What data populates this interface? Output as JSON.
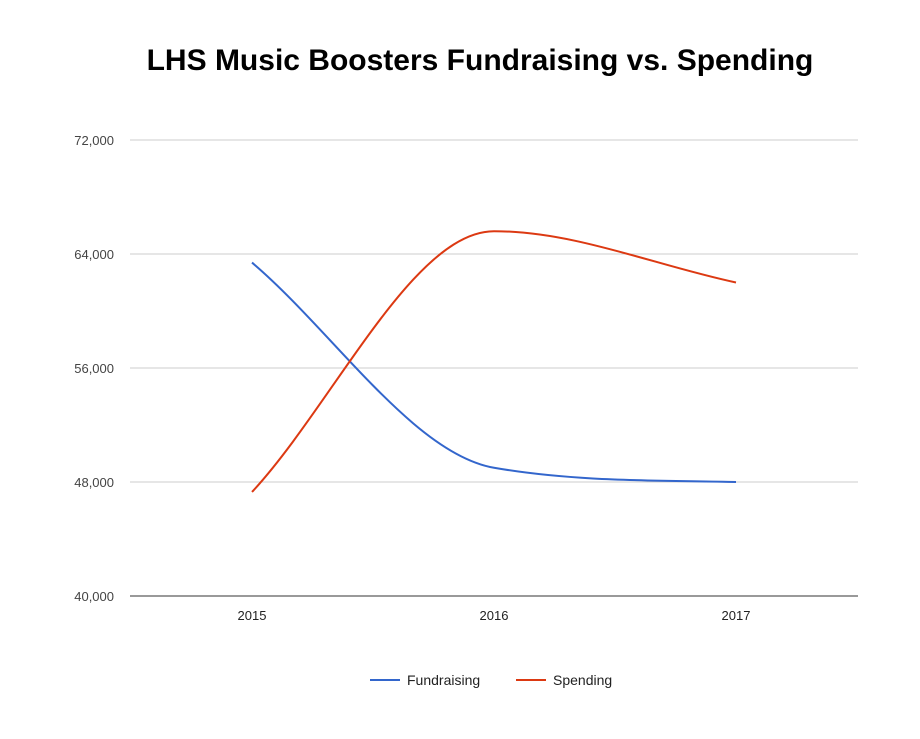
{
  "chart_data": {
    "type": "line",
    "title": "LHS Music Boosters Fundraising vs. Spending",
    "categories": [
      "2015",
      "2016",
      "2017"
    ],
    "series": [
      {
        "name": "Fundraising",
        "color": "#3366cc",
        "values": [
          63400,
          49000,
          48000
        ]
      },
      {
        "name": "Spending",
        "color": "#dc3912",
        "values": [
          47300,
          65600,
          62000
        ]
      }
    ],
    "y_ticks": [
      "72,000",
      "64,000",
      "56,000",
      "48,000",
      "40,000"
    ],
    "ylim": [
      40000,
      72000
    ],
    "grid": true,
    "legend_position": "bottom",
    "curve": "smooth"
  }
}
